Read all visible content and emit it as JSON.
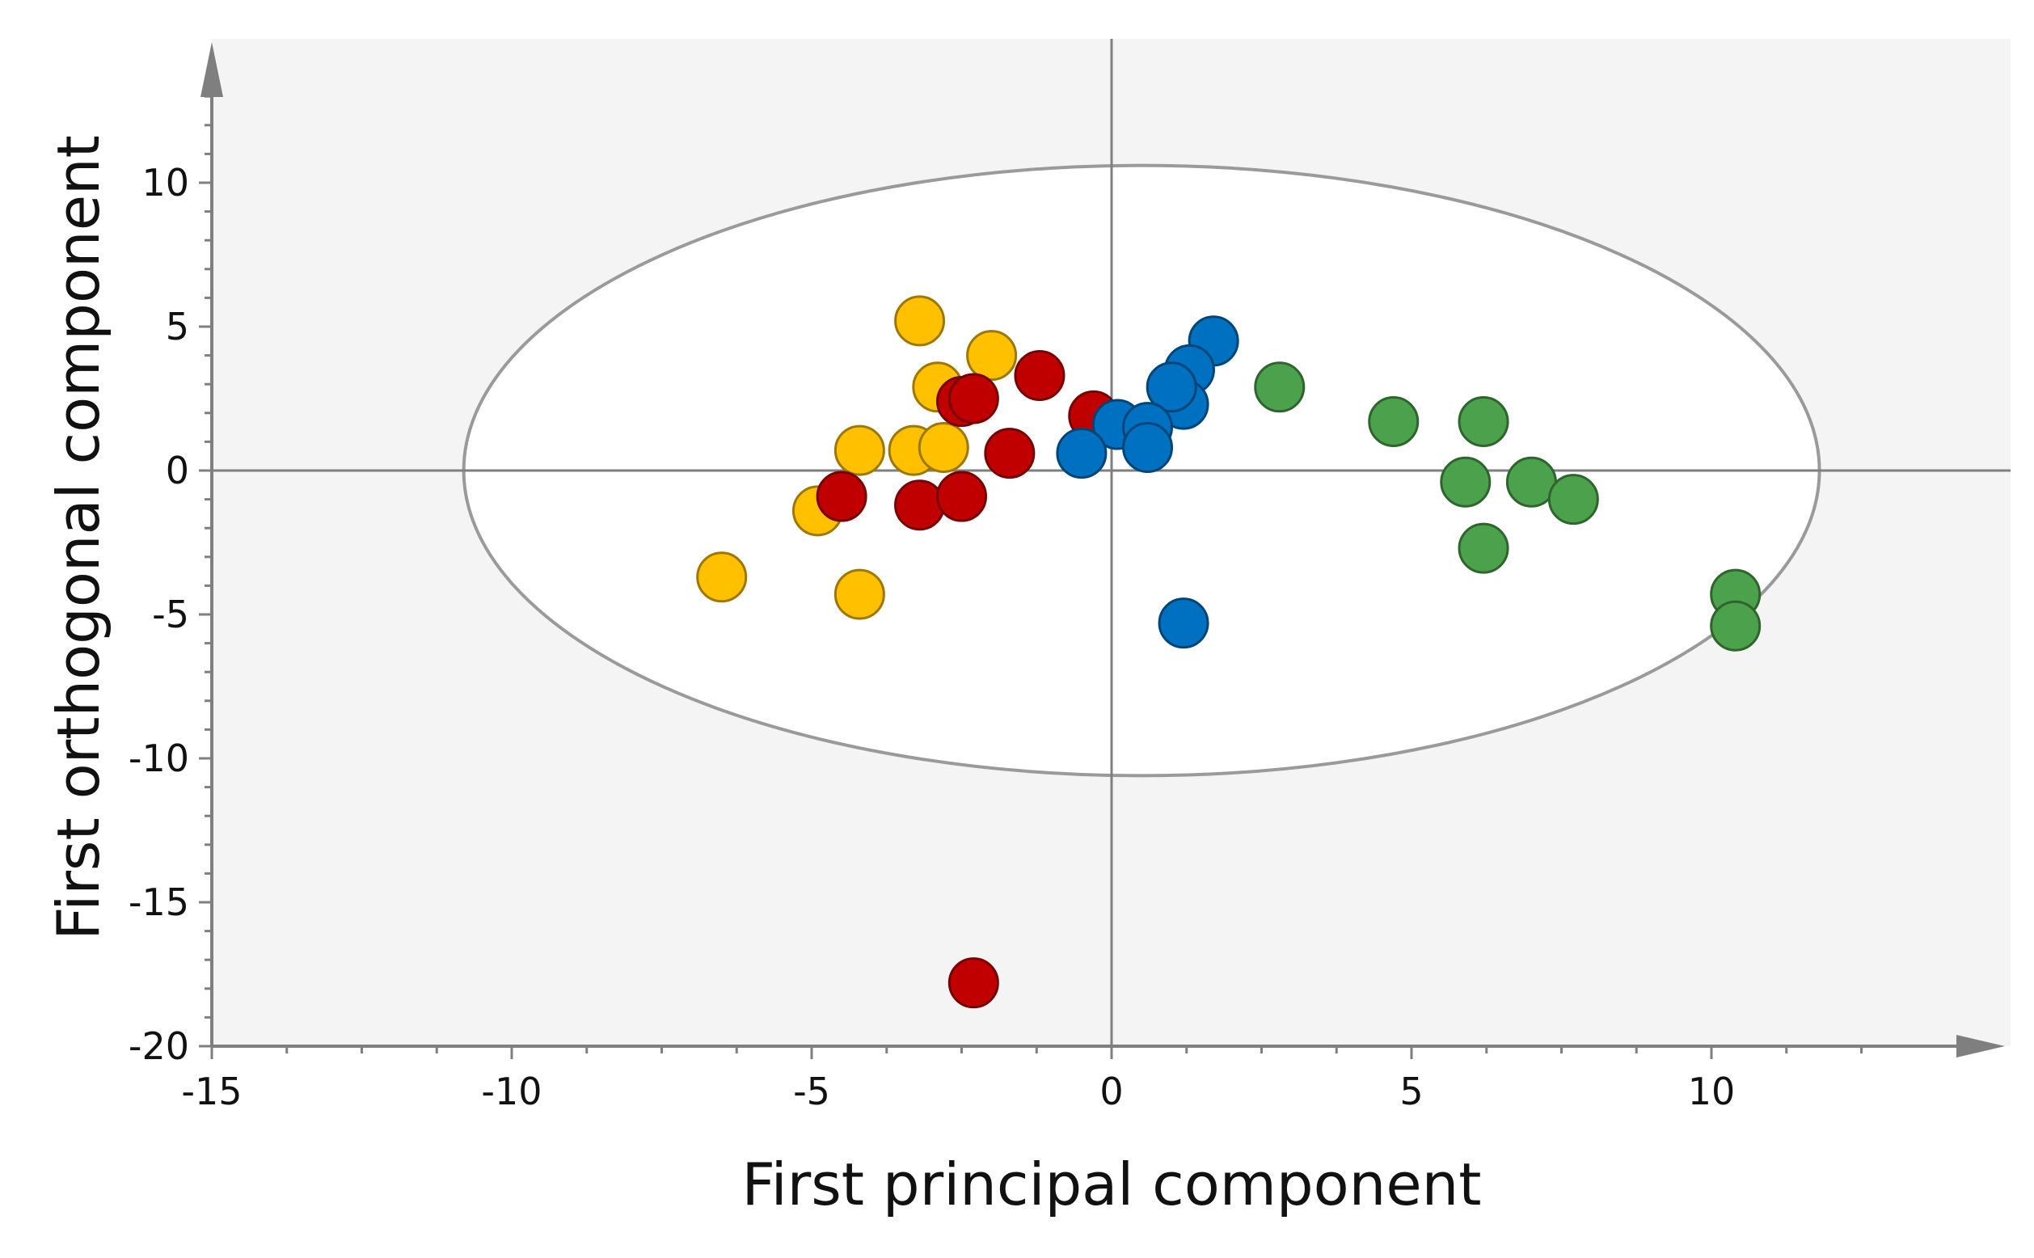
{
  "chart_data": {
    "type": "scatter",
    "xlabel": "First principal component",
    "ylabel": "First orthogonal component",
    "xlim": [
      -15,
      15
    ],
    "ylim": [
      -20,
      15
    ],
    "x_ticks": [
      -15,
      -10,
      -5,
      0,
      5,
      10
    ],
    "y_ticks": [
      -20,
      -15,
      -10,
      -5,
      0,
      5,
      10
    ],
    "x_tick_labels": [
      "-15",
      "-10",
      "-5",
      "0",
      "5",
      "10"
    ],
    "y_tick_labels": [
      "-20",
      "-15",
      "-10",
      "-5",
      "0",
      "5",
      "10"
    ],
    "grid": false,
    "confidence_ellipse": {
      "center": [
        0.5,
        0
      ],
      "semi_axis_x": 11.3,
      "semi_axis_y": 10.6
    },
    "series": [
      {
        "color": "#FFC000",
        "points": [
          {
            "x": -3.2,
            "y": 5.2
          },
          {
            "x": -2.0,
            "y": 4.0
          },
          {
            "x": -2.9,
            "y": 2.9
          },
          {
            "x": -4.2,
            "y": 0.7
          },
          {
            "x": -3.3,
            "y": 0.7
          },
          {
            "x": -2.8,
            "y": 0.8
          },
          {
            "x": -4.9,
            "y": -1.4
          },
          {
            "x": -6.5,
            "y": -3.7
          },
          {
            "x": -4.2,
            "y": -4.3
          }
        ]
      },
      {
        "color": "#C00000",
        "points": [
          {
            "x": -1.2,
            "y": 3.3
          },
          {
            "x": -2.5,
            "y": 2.4
          },
          {
            "x": -2.3,
            "y": 2.5
          },
          {
            "x": -0.3,
            "y": 1.9
          },
          {
            "x": -1.7,
            "y": 0.6
          },
          {
            "x": -4.5,
            "y": -0.9
          },
          {
            "x": -3.2,
            "y": -1.2
          },
          {
            "x": -2.5,
            "y": -0.9
          },
          {
            "x": -2.3,
            "y": -17.8
          }
        ]
      },
      {
        "color": "#0070C0",
        "points": [
          {
            "x": 1.7,
            "y": 4.5
          },
          {
            "x": 1.3,
            "y": 3.5
          },
          {
            "x": 1.2,
            "y": 2.3
          },
          {
            "x": 1.0,
            "y": 2.9
          },
          {
            "x": 0.1,
            "y": 1.6
          },
          {
            "x": 0.6,
            "y": 1.5
          },
          {
            "x": -0.5,
            "y": 0.6
          },
          {
            "x": 0.6,
            "y": 0.8
          },
          {
            "x": 1.2,
            "y": -5.3
          }
        ]
      },
      {
        "color": "#4CA24C",
        "points": [
          {
            "x": 2.8,
            "y": 2.9
          },
          {
            "x": 4.7,
            "y": 1.7
          },
          {
            "x": 6.2,
            "y": 1.7
          },
          {
            "x": 5.9,
            "y": -0.4
          },
          {
            "x": 7.0,
            "y": -0.4
          },
          {
            "x": 7.7,
            "y": -1.0
          },
          {
            "x": 6.2,
            "y": -2.7
          },
          {
            "x": 10.4,
            "y": -4.3
          },
          {
            "x": 10.4,
            "y": -5.4
          }
        ]
      }
    ]
  }
}
